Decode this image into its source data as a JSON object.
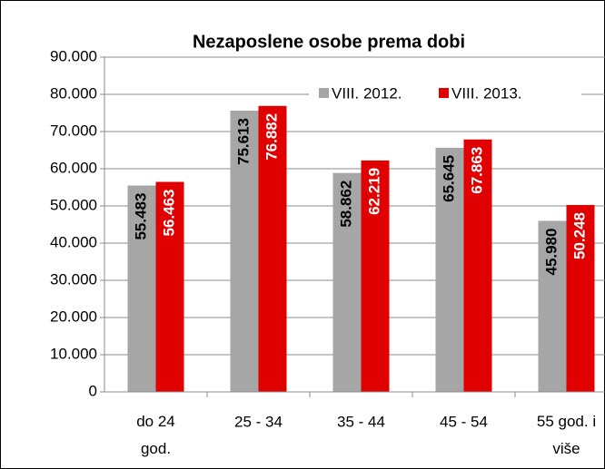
{
  "chart_data": {
    "type": "bar",
    "title": "Nezaposlene osobe prema dobi",
    "categories": [
      "do 24 god.",
      "25 - 34",
      "35 - 44",
      "45 - 54",
      "55 god. i više"
    ],
    "series": [
      {
        "name": "VIII. 2012.",
        "color": "#a6a6a6",
        "label_color": "#000000",
        "values": [
          55483,
          75613,
          58862,
          65645,
          45980
        ],
        "value_labels": [
          "55.483",
          "75.613",
          "58.862",
          "65.645",
          "45.980"
        ]
      },
      {
        "name": "VIII. 2013.",
        "color": "#e00000",
        "label_color": "#ffffff",
        "values": [
          56463,
          76882,
          62219,
          67863,
          50248
        ],
        "value_labels": [
          "56.463",
          "76.882",
          "62.219",
          "67.863",
          "50.248"
        ]
      }
    ],
    "ylim": [
      0,
      90000
    ],
    "yticks": [
      0,
      {
        "value": 10000,
        "label": "10.000"
      },
      {
        "value": 20000,
        "label": "20.000"
      },
      {
        "value": 30000,
        "label": "30.000"
      },
      {
        "value": 40000,
        "label": "40.000"
      },
      {
        "value": 50000,
        "label": "50.000"
      },
      {
        "value": 60000,
        "label": "60.000"
      },
      {
        "value": 70000,
        "label": "70.000"
      },
      {
        "value": 80000,
        "label": "80.000"
      },
      {
        "value": 90000,
        "label": "90.000"
      }
    ],
    "grid": true,
    "legend": "top-right"
  }
}
